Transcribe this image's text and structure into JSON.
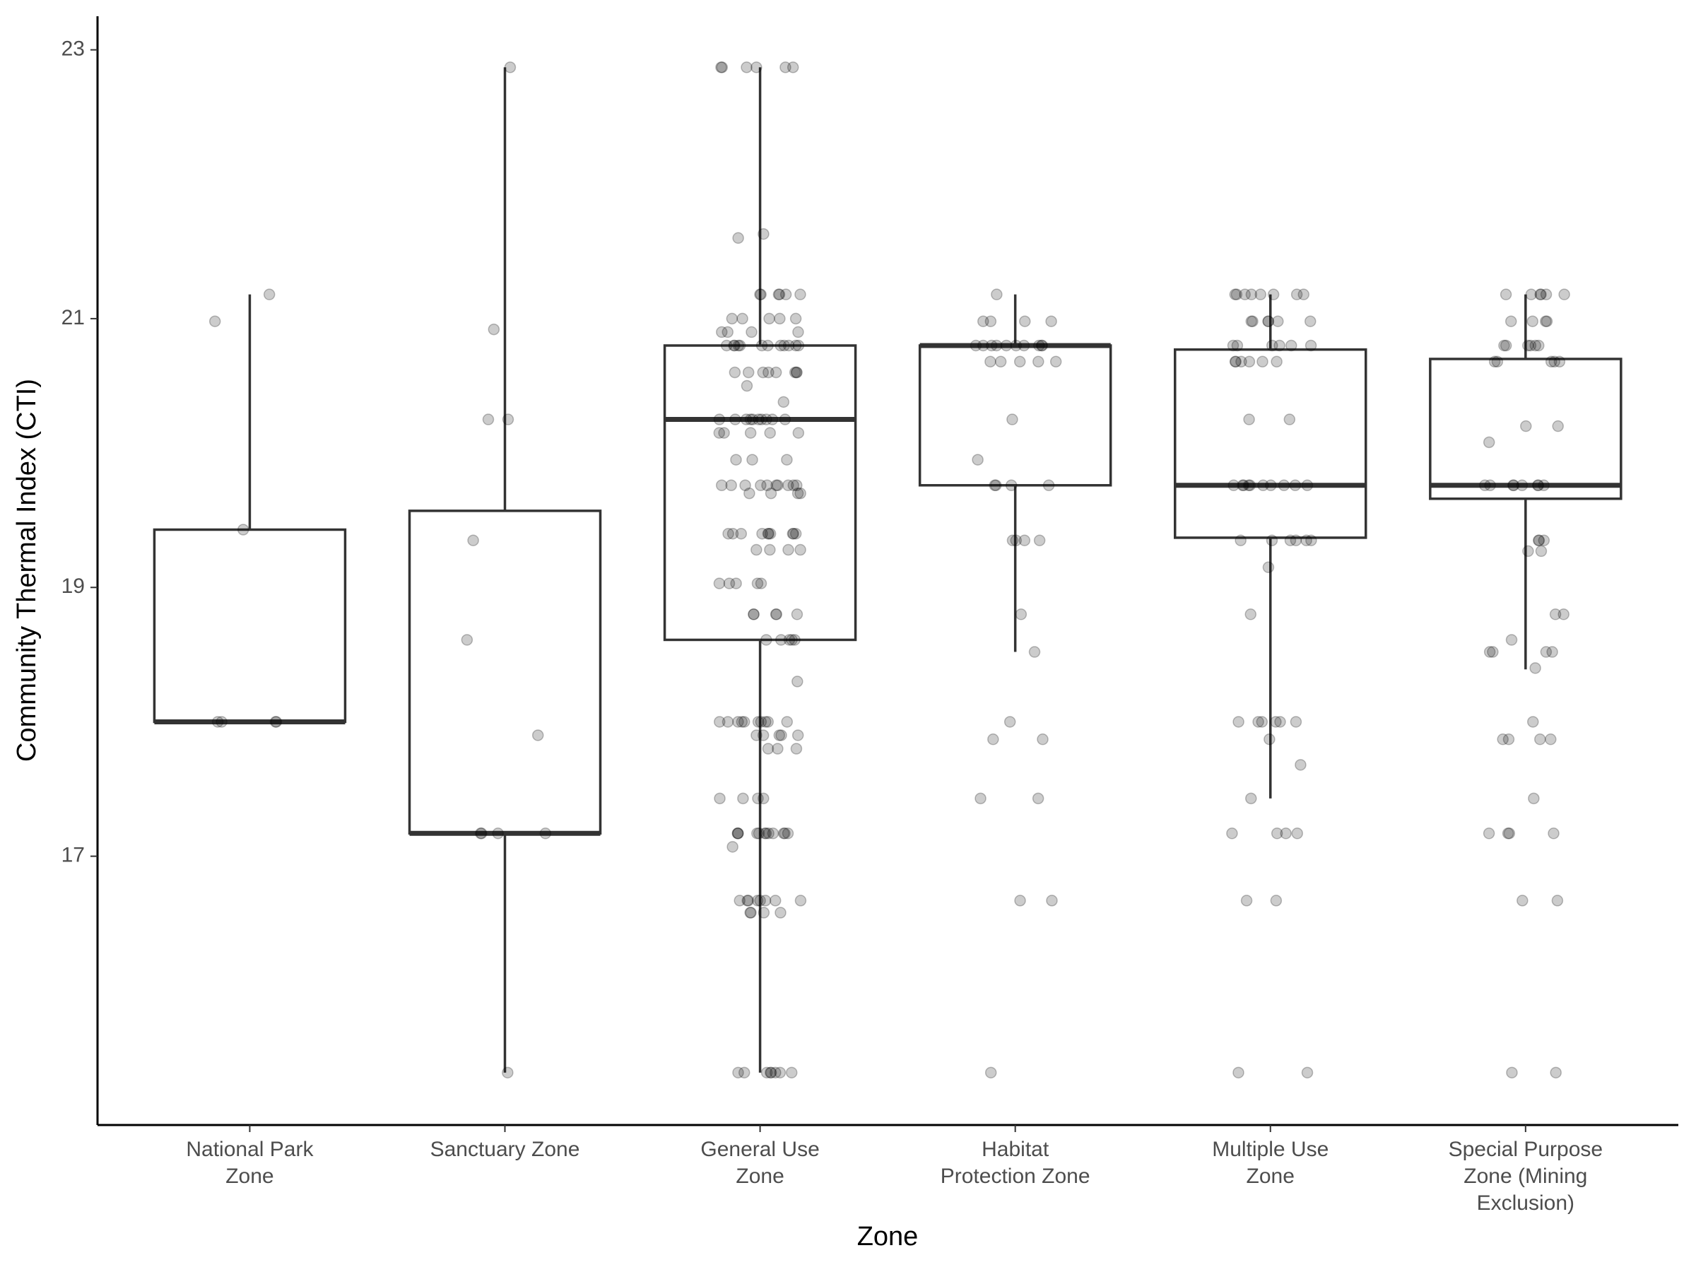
{
  "chart_data": {
    "type": "box",
    "xlabel": "Zone",
    "ylabel": "Community Thermal Index (CTI)",
    "categories": [
      "National Park\nZone",
      "Sanctuary Zone",
      "General Use\nZone",
      "Habitat\nProtection Zone",
      "Multiple Use\nZone",
      "Special Purpose\nZone (Mining\nExclusion)"
    ],
    "ylim": [
      15.0,
      23.25
    ],
    "yticks": [
      17,
      19,
      21,
      23
    ],
    "color": "#333333",
    "point_color": "#000000",
    "boxes": [
      {
        "whislo": 18.0,
        "q1": 18.0,
        "median": 18.0,
        "q3": 19.43,
        "whishi": 21.18,
        "points": [
          21.18,
          20.98,
          19.43,
          18.0,
          18.0,
          18.0,
          18.0
        ]
      },
      {
        "whislo": 15.39,
        "q1": 17.17,
        "median": 17.17,
        "q3": 19.57,
        "whishi": 22.87,
        "points": [
          22.87,
          20.92,
          20.25,
          20.25,
          19.35,
          18.61,
          17.9,
          17.17,
          17.17,
          17.17,
          17.17,
          15.39
        ]
      },
      {
        "whislo": 15.39,
        "q1": 18.61,
        "median": 20.25,
        "q3": 20.8,
        "whishi": 22.87,
        "points": [
          22.87,
          22.87,
          22.87,
          22.87,
          22.87,
          22.87,
          21.63,
          21.6,
          21.18,
          21.18,
          21.18,
          21.18,
          21.18,
          21.18,
          21.0,
          21.0,
          21.0,
          21.0,
          21.0,
          20.9,
          20.9,
          20.9,
          20.9,
          20.8,
          20.8,
          20.8,
          20.8,
          20.8,
          20.8,
          20.8,
          20.8,
          20.8,
          20.8,
          20.8,
          20.8,
          20.6,
          20.6,
          20.6,
          20.6,
          20.6,
          20.6,
          20.6,
          20.6,
          20.5,
          20.38,
          20.25,
          20.25,
          20.25,
          20.25,
          20.25,
          20.25,
          20.25,
          20.25,
          20.25,
          20.25,
          20.15,
          20.15,
          20.15,
          20.15,
          20.15,
          19.95,
          19.95,
          19.95,
          19.76,
          19.76,
          19.76,
          19.76,
          19.76,
          19.76,
          19.76,
          19.76,
          19.76,
          19.76,
          19.7,
          19.7,
          19.7,
          19.7,
          19.4,
          19.4,
          19.4,
          19.4,
          19.4,
          19.4,
          19.4,
          19.4,
          19.4,
          19.4,
          19.28,
          19.28,
          19.28,
          19.28,
          19.03,
          19.03,
          19.03,
          19.03,
          19.03,
          18.8,
          18.8,
          18.8,
          18.8,
          18.8,
          18.61,
          18.61,
          18.61,
          18.61,
          18.61,
          18.3,
          18.0,
          18.0,
          18.0,
          18.0,
          18.0,
          18.0,
          18.0,
          18.0,
          18.0,
          18.0,
          17.9,
          17.9,
          17.9,
          17.9,
          17.9,
          17.8,
          17.8,
          17.8,
          17.43,
          17.43,
          17.43,
          17.43,
          17.17,
          17.17,
          17.17,
          17.17,
          17.17,
          17.17,
          17.17,
          17.17,
          17.17,
          17.17,
          17.17,
          17.17,
          17.07,
          16.67,
          16.67,
          16.67,
          16.67,
          16.67,
          16.67,
          16.67,
          16.67,
          16.58,
          16.58,
          16.58,
          16.58,
          15.39,
          15.39,
          15.39,
          15.39,
          15.39,
          15.39,
          15.39,
          15.39
        ]
      },
      {
        "whislo": 18.52,
        "q1": 19.76,
        "median": 20.8,
        "q3": 20.8,
        "whishi": 21.18,
        "points": [
          21.18,
          20.98,
          20.98,
          20.98,
          20.98,
          20.8,
          20.8,
          20.8,
          20.8,
          20.8,
          20.8,
          20.8,
          20.8,
          20.8,
          20.8,
          20.68,
          20.68,
          20.68,
          20.68,
          20.68,
          20.25,
          19.95,
          19.76,
          19.76,
          19.76,
          19.76,
          19.35,
          19.35,
          19.35,
          19.35,
          18.8,
          18.52,
          18.0,
          17.87,
          17.87,
          17.43,
          17.43,
          16.67,
          16.67,
          15.39
        ]
      },
      {
        "whislo": 17.43,
        "q1": 19.37,
        "median": 19.76,
        "q3": 20.77,
        "whishi": 21.18,
        "points": [
          21.18,
          21.18,
          21.18,
          21.18,
          21.18,
          21.18,
          21.18,
          21.18,
          20.98,
          20.98,
          20.98,
          20.98,
          20.98,
          20.98,
          20.8,
          20.8,
          20.8,
          20.8,
          20.8,
          20.8,
          20.68,
          20.68,
          20.68,
          20.68,
          20.68,
          20.68,
          20.25,
          20.25,
          19.76,
          19.76,
          19.76,
          19.76,
          19.76,
          19.76,
          19.76,
          19.76,
          19.76,
          19.76,
          19.35,
          19.35,
          19.35,
          19.35,
          19.35,
          19.35,
          19.15,
          18.8,
          18.0,
          18.0,
          18.0,
          18.0,
          18.0,
          18.0,
          17.87,
          17.68,
          17.43,
          17.17,
          17.17,
          17.17,
          17.17,
          16.67,
          16.67,
          15.39,
          15.39
        ]
      },
      {
        "whislo": 18.39,
        "q1": 19.66,
        "median": 19.76,
        "q3": 20.7,
        "whishi": 21.18,
        "points": [
          21.18,
          21.18,
          21.18,
          21.18,
          21.18,
          21.18,
          20.98,
          20.98,
          20.98,
          20.98,
          20.8,
          20.8,
          20.8,
          20.8,
          20.8,
          20.8,
          20.68,
          20.68,
          20.68,
          20.68,
          20.68,
          20.2,
          20.2,
          20.08,
          19.76,
          19.76,
          19.76,
          19.76,
          19.76,
          19.76,
          19.76,
          19.76,
          19.35,
          19.35,
          19.35,
          19.27,
          19.27,
          18.8,
          18.8,
          18.61,
          18.52,
          18.52,
          18.52,
          18.52,
          18.4,
          18.0,
          17.87,
          17.87,
          17.87,
          17.87,
          17.43,
          17.17,
          17.17,
          17.17,
          17.17,
          16.67,
          16.67,
          15.39,
          15.39
        ]
      }
    ]
  }
}
